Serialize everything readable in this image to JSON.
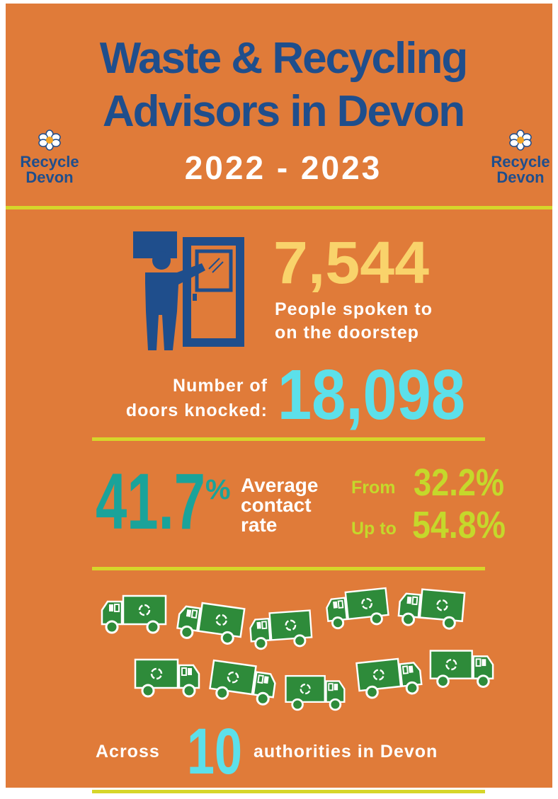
{
  "header": {
    "title_lines": [
      "Waste & Recycling",
      "Advisors in Devon"
    ],
    "years": "2022 - 2023",
    "logo": [
      "Recycle",
      "Devon"
    ]
  },
  "doorstep": {
    "people_value": "7,544",
    "people_lines": [
      "People spoken to",
      "on the doorstep"
    ],
    "doors_lines": [
      "Number of",
      "doors knocked:"
    ],
    "doors_value": "18,098"
  },
  "contact": {
    "average_value": "41.7",
    "average_unit": "%",
    "average_lines": [
      "Average",
      "contact",
      "rate"
    ],
    "from_label": "From",
    "from_value": "32.2%",
    "upto_label": "Up to",
    "upto_value": "54.8%"
  },
  "authorities": {
    "before": "Across",
    "value": "10",
    "after": "authorities in Devon"
  }
}
